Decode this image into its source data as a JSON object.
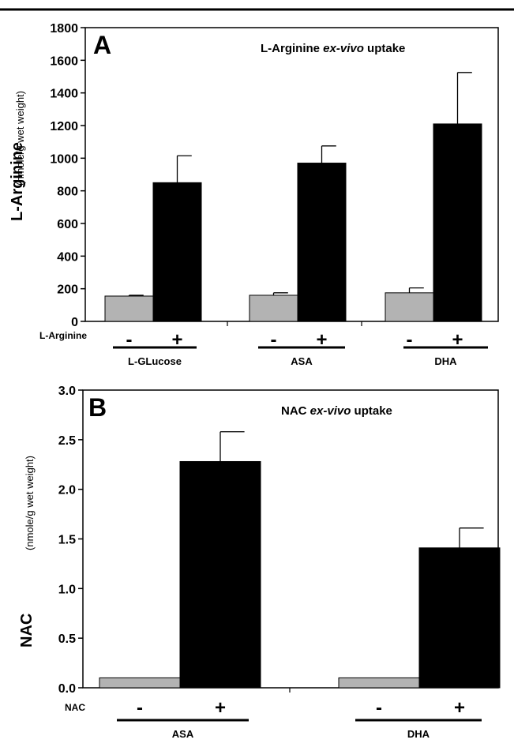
{
  "chart_data": [
    {
      "type": "bar",
      "panel_label": "A",
      "title_prefix": "L-Arginine ",
      "title_italic": "ex-vivo",
      "title_suffix": " uptake",
      "ylabel_main": "L-Arginine",
      "ylabel_unit": "(nmole/g wet weight)",
      "ylim": [
        0,
        1800
      ],
      "yticks": [
        0,
        200,
        400,
        600,
        800,
        1000,
        1200,
        1400,
        1600,
        1800
      ],
      "row_label": "L-Arginine",
      "groups": [
        {
          "name": "L-GLucose",
          "bars": [
            {
              "sign": "-",
              "value": 155,
              "error": 5,
              "color": "#b3b3b3"
            },
            {
              "sign": "+",
              "value": 850,
              "error": 165,
              "color": "#000000"
            }
          ]
        },
        {
          "name": "ASA",
          "bars": [
            {
              "sign": "-",
              "value": 160,
              "error": 15,
              "color": "#b3b3b3"
            },
            {
              "sign": "+",
              "value": 970,
              "error": 105,
              "color": "#000000"
            }
          ]
        },
        {
          "name": "DHA",
          "bars": [
            {
              "sign": "-",
              "value": 175,
              "error": 30,
              "color": "#b3b3b3"
            },
            {
              "sign": "+",
              "value": 1210,
              "error": 315,
              "color": "#000000"
            }
          ]
        }
      ]
    },
    {
      "type": "bar",
      "panel_label": "B",
      "title_prefix": "NAC ",
      "title_italic": "ex-vivo",
      "title_suffix": " uptake",
      "ylabel_main": "NAC",
      "ylabel_unit": "(nmole/g wet weight)",
      "ylim": [
        0,
        3.0
      ],
      "yticks": [
        "0.0",
        "0.5",
        "1.0",
        "1.5",
        "2.0",
        "2.5",
        "3.0"
      ],
      "row_label": "NAC",
      "groups": [
        {
          "name": "ASA",
          "bars": [
            {
              "sign": "-",
              "value": 0.1,
              "error": 0,
              "color": "#b3b3b3"
            },
            {
              "sign": "+",
              "value": 2.28,
              "error": 0.3,
              "color": "#000000"
            }
          ]
        },
        {
          "name": "DHA",
          "bars": [
            {
              "sign": "-",
              "value": 0.1,
              "error": 0,
              "color": "#b3b3b3"
            },
            {
              "sign": "+",
              "value": 1.41,
              "error": 0.2,
              "color": "#000000"
            }
          ]
        }
      ]
    }
  ]
}
